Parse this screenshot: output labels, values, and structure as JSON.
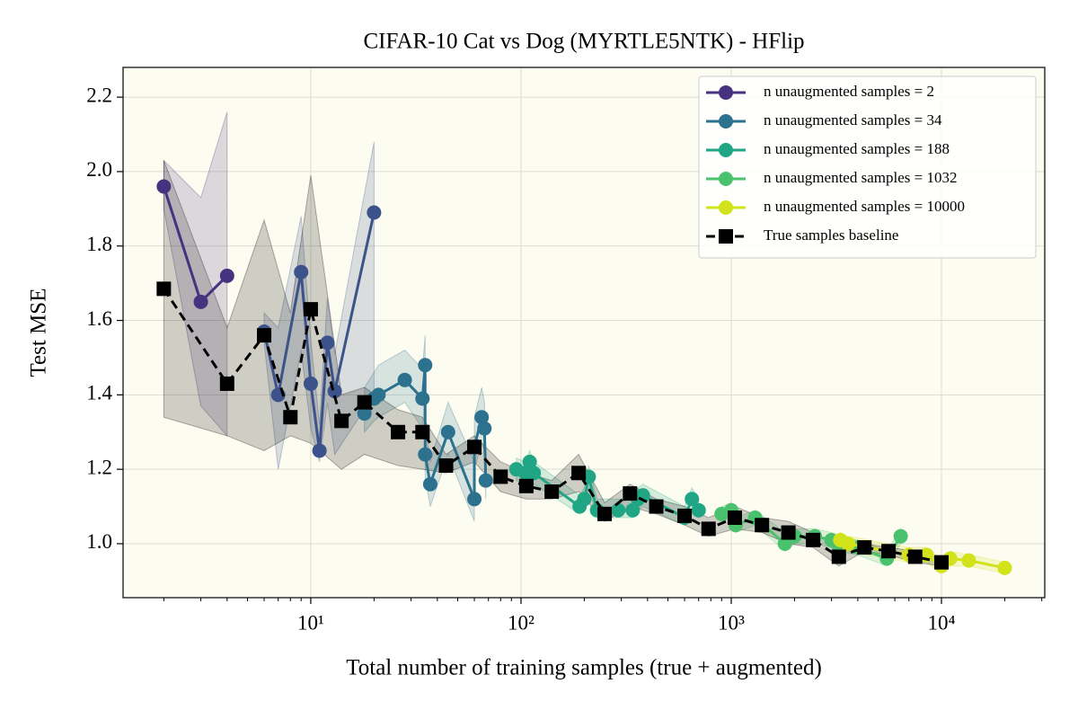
{
  "chart_data": {
    "type": "line",
    "title": "CIFAR-10 Cat vs Dog (MYRTLE5NTK) - HFlip",
    "x_label": "Total number of training samples (true + augmented)",
    "y_label": "Test MSE",
    "xscale": "log",
    "xlim": [
      1.28,
      31000
    ],
    "ylim": [
      0.855,
      2.28
    ],
    "xticks": [
      {
        "value": 10,
        "label": "10¹"
      },
      {
        "value": 100,
        "label": "10²"
      },
      {
        "value": 1000,
        "label": "10³"
      },
      {
        "value": 10000,
        "label": "10⁴"
      }
    ],
    "yticks": [
      {
        "value": 1.0,
        "label": "1.0"
      },
      {
        "value": 1.2,
        "label": "1.2"
      },
      {
        "value": 1.4,
        "label": "1.4"
      },
      {
        "value": 1.6,
        "label": "1.6"
      },
      {
        "value": 1.8,
        "label": "1.8"
      },
      {
        "value": 2.0,
        "label": "2.0"
      },
      {
        "value": 2.2,
        "label": "2.2"
      }
    ],
    "grid": true,
    "legend": "upper right",
    "background": "#fdfcf0",
    "series": [
      {
        "name": "n unaugmented samples = 2",
        "color": "#46327e",
        "marker": "o",
        "x": [
          2,
          3,
          4
        ],
        "values": [
          1.96,
          1.65,
          1.72
        ],
        "lower": [
          1.9,
          1.37,
          1.29
        ],
        "upper": [
          2.03,
          1.93,
          2.16
        ]
      },
      {
        "color": "#3b528b",
        "marker": "o",
        "x": [
          6,
          7,
          9,
          10,
          11,
          12,
          13,
          20
        ],
        "values": [
          1.57,
          1.4,
          1.73,
          1.43,
          1.25,
          1.54,
          1.41,
          1.89
        ],
        "lower": [
          1.54,
          1.2,
          1.52,
          1.31,
          1.22,
          1.38,
          1.24,
          1.4
        ],
        "upper": [
          1.62,
          1.58,
          1.88,
          1.55,
          1.32,
          1.66,
          1.51,
          2.08
        ]
      },
      {
        "name": "n unaugmented samples = 34",
        "color": "#2c728e",
        "marker": "o",
        "x": [
          18,
          20,
          21,
          28,
          34,
          35,
          35,
          37,
          45,
          60,
          60,
          65,
          67,
          68
        ],
        "values": [
          1.35,
          1.39,
          1.4,
          1.44,
          1.39,
          1.48,
          1.24,
          1.16,
          1.3,
          1.12,
          1.26,
          1.34,
          1.31,
          1.17
        ],
        "lower": [
          1.3,
          1.33,
          1.34,
          1.38,
          1.31,
          1.41,
          1.18,
          1.1,
          1.24,
          1.06,
          1.2,
          1.27,
          1.25,
          1.12
        ],
        "upper": [
          1.42,
          1.46,
          1.48,
          1.52,
          1.47,
          1.56,
          1.32,
          1.22,
          1.38,
          1.22,
          1.34,
          1.42,
          1.38,
          1.24
        ]
      },
      {
        "name": "n unaugmented samples = 188",
        "color": "#21a685",
        "marker": "o",
        "x": [
          95,
          105,
          110,
          115,
          190,
          200,
          210,
          230,
          290,
          340,
          360,
          380,
          600,
          650,
          700
        ],
        "values": [
          1.2,
          1.19,
          1.22,
          1.19,
          1.1,
          1.12,
          1.18,
          1.09,
          1.09,
          1.09,
          1.12,
          1.13,
          1.07,
          1.12,
          1.09
        ],
        "lower": [
          1.17,
          1.16,
          1.19,
          1.16,
          1.08,
          1.09,
          1.15,
          1.07,
          1.07,
          1.07,
          1.09,
          1.1,
          1.05,
          1.09,
          1.07
        ],
        "upper": [
          1.23,
          1.22,
          1.25,
          1.22,
          1.13,
          1.15,
          1.21,
          1.12,
          1.12,
          1.12,
          1.15,
          1.16,
          1.1,
          1.15,
          1.12
        ]
      },
      {
        "name": "n unaugmented samples = 1032",
        "color": "#4ac16d",
        "marker": "o",
        "x": [
          900,
          1000,
          1050,
          1300,
          1800,
          2000,
          2500,
          3000,
          3200,
          4000,
          5500,
          6400
        ],
        "values": [
          1.08,
          1.09,
          1.05,
          1.07,
          1.0,
          1.02,
          1.02,
          1.01,
          1.0,
          0.99,
          0.96,
          1.02
        ],
        "lower": [
          1.06,
          1.07,
          1.03,
          1.05,
          0.98,
          1.0,
          1.0,
          0.99,
          0.98,
          0.97,
          0.94,
          1.0
        ],
        "upper": [
          1.1,
          1.11,
          1.07,
          1.09,
          1.03,
          1.04,
          1.04,
          1.03,
          1.02,
          1.01,
          0.98,
          1.04
        ]
      },
      {
        "name": "n unaugmented samples = 10000",
        "color": "#d2e21b",
        "marker": "o",
        "x": [
          3300,
          3600,
          7000,
          8500,
          10000,
          11000,
          13500,
          20000
        ],
        "values": [
          1.01,
          1.0,
          0.97,
          0.97,
          0.94,
          0.96,
          0.955,
          0.935
        ],
        "lower": [
          0.99,
          0.98,
          0.95,
          0.95,
          0.92,
          0.94,
          0.94,
          0.92
        ],
        "upper": [
          1.03,
          1.02,
          0.99,
          0.99,
          0.96,
          0.98,
          0.97,
          0.95
        ]
      },
      {
        "name": "True samples baseline",
        "color": "#000000",
        "marker": "s",
        "dashed": true,
        "x": [
          2,
          4,
          6,
          8,
          10,
          14,
          18,
          26,
          34,
          44,
          60,
          80,
          106,
          140,
          188,
          250,
          330,
          440,
          600,
          780,
          1040,
          1400,
          1870,
          2450,
          3250,
          4300,
          5600,
          7500,
          10000
        ],
        "values": [
          1.685,
          1.43,
          1.56,
          1.34,
          1.63,
          1.33,
          1.38,
          1.3,
          1.3,
          1.21,
          1.26,
          1.18,
          1.155,
          1.14,
          1.19,
          1.08,
          1.135,
          1.1,
          1.075,
          1.04,
          1.07,
          1.05,
          1.03,
          1.01,
          0.965,
          0.99,
          0.98,
          0.965,
          0.95
        ],
        "lower": [
          1.34,
          1.29,
          1.25,
          1.29,
          1.27,
          1.2,
          1.24,
          1.21,
          1.2,
          1.19,
          1.22,
          1.14,
          1.12,
          1.12,
          1.14,
          1.06,
          1.1,
          1.08,
          1.05,
          1.02,
          1.04,
          1.03,
          1.0,
          0.99,
          0.94,
          0.98,
          0.97,
          0.95,
          0.94
        ],
        "upper": [
          2.03,
          1.58,
          1.87,
          1.62,
          1.99,
          1.4,
          1.42,
          1.36,
          1.34,
          1.24,
          1.29,
          1.22,
          1.19,
          1.17,
          1.24,
          1.11,
          1.16,
          1.12,
          1.1,
          1.07,
          1.1,
          1.07,
          1.06,
          1.03,
          0.99,
          1.0,
          0.99,
          0.98,
          0.96
        ]
      }
    ]
  }
}
